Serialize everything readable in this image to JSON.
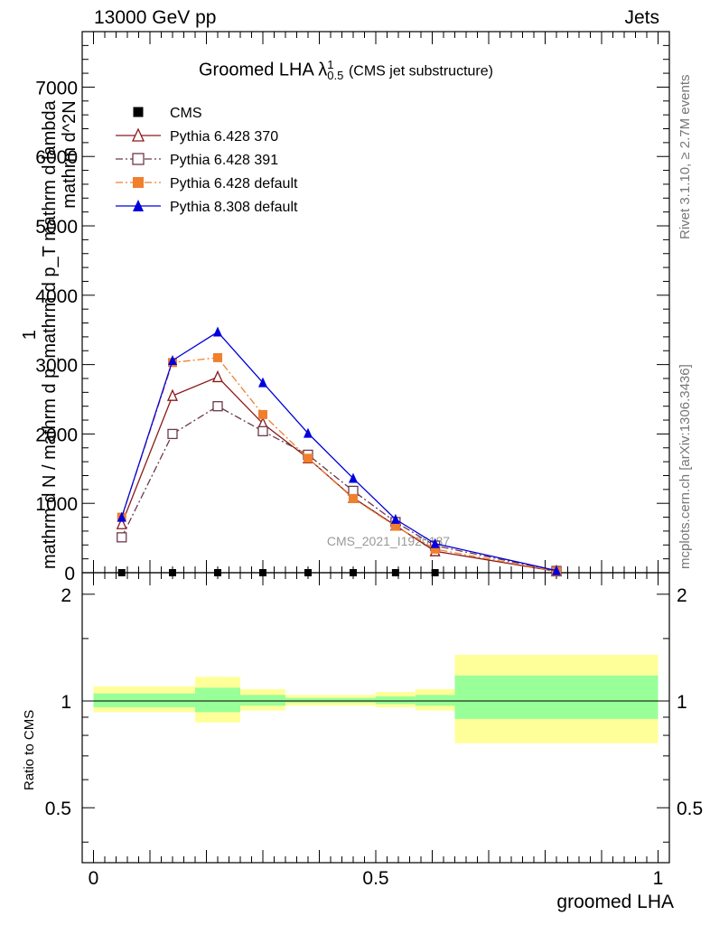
{
  "header": {
    "left": "13000 GeV pp",
    "right": "Jets"
  },
  "side": {
    "rivet": "Rivet 3.1.10, ≥ 2.7M events",
    "mcplots": "mcplots.cern.ch [arXiv:1306.3436]"
  },
  "plot_title": {
    "main": "Groomed LHA",
    "lambda": "λ",
    "sup": "1",
    "sub": "0.5",
    "suffix": "(CMS jet substructure)"
  },
  "ylabel_main": {
    "line1": "1",
    "line2": "mathrm d N / mathrm d p_mathrm d p_T mathrm d lambda",
    "line3": "mathrm d^2N"
  },
  "watermark": "CMS_2021_I1920187",
  "ratio_ylabel": "Ratio to CMS",
  "xlabel": "groomed LHA",
  "chart_data": [
    {
      "type": "line",
      "panel": "main",
      "xlim": [
        -0.02,
        1.02
      ],
      "ylim": [
        0,
        7800
      ],
      "yticks": [
        1000,
        2000,
        3000,
        4000,
        5000,
        6000,
        7000
      ],
      "yticklabels": [
        "1000",
        "2000",
        "3000",
        "4000",
        "5000",
        "6000",
        "7000"
      ],
      "legend_position": "top-left",
      "series": [
        {
          "name": "CMS",
          "color": "#000000",
          "marker": "square-filled",
          "linestyle": "none",
          "x": [
            0.05,
            0.14,
            0.22,
            0.3,
            0.38,
            0.46,
            0.535,
            0.605
          ],
          "y": [
            0,
            0,
            0,
            0,
            0,
            0,
            0,
            0
          ]
        },
        {
          "name": "Pythia 6.428 370",
          "color": "#8b1a1a",
          "marker": "triangle-open",
          "linestyle": "solid",
          "x": [
            0.05,
            0.14,
            0.22,
            0.3,
            0.38,
            0.46,
            0.535,
            0.605,
            0.82
          ],
          "y": [
            700,
            2550,
            2820,
            2150,
            1650,
            1080,
            680,
            310,
            20
          ]
        },
        {
          "name": "Pythia 6.428 391",
          "color": "#6b3a4a",
          "marker": "square-open",
          "linestyle": "dashdot",
          "x": [
            0.05,
            0.14,
            0.22,
            0.3,
            0.38,
            0.46,
            0.535,
            0.605,
            0.82
          ],
          "y": [
            510,
            2000,
            2400,
            2040,
            1700,
            1180,
            730,
            390,
            25
          ]
        },
        {
          "name": "Pythia 6.428 default",
          "color": "#f07f2e",
          "marker": "square-filled",
          "linestyle": "dashdot",
          "x": [
            0.05,
            0.14,
            0.22,
            0.3,
            0.38,
            0.46,
            0.535,
            0.605,
            0.82
          ],
          "y": [
            800,
            3030,
            3100,
            2280,
            1650,
            1070,
            670,
            340,
            20
          ]
        },
        {
          "name": "Pythia 8.308 default",
          "color": "#0000dd",
          "marker": "triangle-filled",
          "linestyle": "solid",
          "x": [
            0.05,
            0.14,
            0.22,
            0.3,
            0.38,
            0.46,
            0.535,
            0.605,
            0.82
          ],
          "y": [
            800,
            3060,
            3470,
            2740,
            2010,
            1360,
            770,
            420,
            30
          ]
        }
      ]
    },
    {
      "type": "area",
      "panel": "ratio",
      "xlim": [
        -0.02,
        1.02
      ],
      "ylim": [
        0.35,
        2.3
      ],
      "ytick_values": [
        0.5,
        1,
        2
      ],
      "yticklabels": [
        "0.5",
        "1",
        "2"
      ],
      "xtick_values": [
        0,
        0.5,
        1
      ],
      "xticklabels": [
        "0",
        "0.5",
        "1"
      ],
      "reference_line": 1,
      "bands": [
        {
          "x0": 0.0,
          "x1": 0.18,
          "inner": [
            0.96,
            1.05
          ],
          "outer": [
            0.93,
            1.1
          ]
        },
        {
          "x0": 0.18,
          "x1": 0.26,
          "inner": [
            0.93,
            1.09
          ],
          "outer": [
            0.87,
            1.17
          ]
        },
        {
          "x0": 0.26,
          "x1": 0.34,
          "inner": [
            0.97,
            1.04
          ],
          "outer": [
            0.94,
            1.08
          ]
        },
        {
          "x0": 0.34,
          "x1": 0.5,
          "inner": [
            0.99,
            1.02
          ],
          "outer": [
            0.97,
            1.04
          ]
        },
        {
          "x0": 0.5,
          "x1": 0.57,
          "inner": [
            0.98,
            1.03
          ],
          "outer": [
            0.96,
            1.06
          ]
        },
        {
          "x0": 0.57,
          "x1": 0.64,
          "inner": [
            0.97,
            1.04
          ],
          "outer": [
            0.94,
            1.08
          ]
        },
        {
          "x0": 0.64,
          "x1": 1.0,
          "inner": [
            0.89,
            1.18
          ],
          "outer": [
            0.76,
            1.35
          ]
        }
      ],
      "band_colors": {
        "inner": "#99ff99",
        "outer": "#ffff99"
      }
    }
  ]
}
